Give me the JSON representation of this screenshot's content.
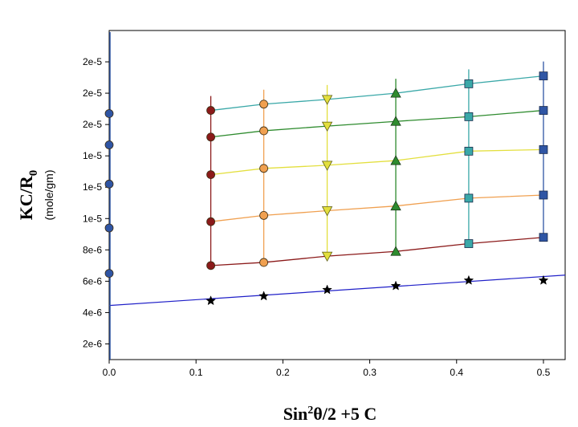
{
  "chart_data": {
    "type": "scatter",
    "subtype": "zimm-plot",
    "xlabel": {
      "base": "Sin",
      "sup": "2",
      "rest": "θ/2 +5 C"
    },
    "ylabel": {
      "base": "KC/R",
      "sub": "0",
      "unit": "(mole/gm)"
    },
    "xlim": [
      0,
      0.525
    ],
    "ylim": [
      1e-06,
      2.2e-05
    ],
    "x_ticks": [
      {
        "value": 0.0,
        "label": "0.0"
      },
      {
        "value": 0.1,
        "label": "0.1"
      },
      {
        "value": 0.2,
        "label": "0.2"
      },
      {
        "value": 0.3,
        "label": "0.3"
      },
      {
        "value": 0.4,
        "label": "0.4"
      },
      {
        "value": 0.5,
        "label": "0.5"
      }
    ],
    "y_ticks": [
      {
        "value": 2e-06,
        "label": "2e-6"
      },
      {
        "value": 4e-06,
        "label": "4e-6"
      },
      {
        "value": 6e-06,
        "label": "6e-6"
      },
      {
        "value": 8e-06,
        "label": "8e-6"
      },
      {
        "value": 1e-05,
        "label": "1e-5"
      },
      {
        "value": 1.2e-05,
        "label": "1e-5"
      },
      {
        "value": 1.4e-05,
        "label": "1e-5"
      },
      {
        "value": 1.6e-05,
        "label": "2e-5"
      },
      {
        "value": 1.8e-05,
        "label": "2e-5"
      },
      {
        "value": 2e-05,
        "label": "2e-5"
      }
    ],
    "grid": false,
    "legend": "none",
    "x_columns": [
      0.117,
      0.178,
      0.251,
      0.33,
      0.414,
      0.5
    ],
    "concentration_lines": [
      {
        "color": "#8b1a1a",
        "y": [
          7e-06,
          7.2e-06,
          7.6e-06,
          7.9e-06,
          8.4e-06,
          8.8e-06
        ]
      },
      {
        "color": "#f0a050",
        "y": [
          9.8e-06,
          1.02e-05,
          1.05e-05,
          1.08e-05,
          1.13e-05,
          1.15e-05
        ]
      },
      {
        "color": "#e3df3e",
        "y": [
          1.28e-05,
          1.32e-05,
          1.34e-05,
          1.37e-05,
          1.43e-05,
          1.44e-05
        ]
      },
      {
        "color": "#2e8b2e",
        "y": [
          1.52e-05,
          1.56e-05,
          1.59e-05,
          1.62e-05,
          1.65e-05,
          1.69e-05
        ]
      },
      {
        "color": "#3aa8a8",
        "y": [
          1.69e-05,
          1.73e-05,
          1.76e-05,
          1.8e-05,
          1.86e-05,
          1.91e-05
        ]
      }
    ],
    "angle_lines": [
      {
        "color": "#8b1a1a",
        "marker": "circle",
        "fill": "#8b1a1a"
      },
      {
        "color": "#f0a050",
        "marker": "circle",
        "fill": "#f0a050"
      },
      {
        "color": "#e3df3e",
        "marker": "triangle-down",
        "fill": "#e3df3e"
      },
      {
        "color": "#2e8b2e",
        "marker": "triangle-up",
        "fill": "#2e8b2e"
      },
      {
        "color": "#3aa8a8",
        "marker": "square",
        "fill": "#3aa8a8"
      },
      {
        "color": "#2f55a4",
        "marker": "square",
        "fill": "#2f55a4"
      }
    ],
    "zero_angle_extrapolation": {
      "color": "#1f1fc8",
      "intercept": 4.45e-06,
      "slope": 3.7e-06,
      "points": [
        {
          "x": 0.117,
          "y": 4.75e-06
        },
        {
          "x": 0.178,
          "y": 5.05e-06
        },
        {
          "x": 0.251,
          "y": 5.45e-06
        },
        {
          "x": 0.33,
          "y": 5.7e-06
        },
        {
          "x": 0.414,
          "y": 6.05e-06
        },
        {
          "x": 0.5,
          "y": 6.05e-06
        }
      ],
      "marker": "star"
    },
    "zero_concentration_points": {
      "color": "#2f55a4",
      "x": 0,
      "y": [
        6.5e-06,
        9.4e-06,
        1.22e-05,
        1.47e-05,
        1.67e-05
      ]
    }
  }
}
